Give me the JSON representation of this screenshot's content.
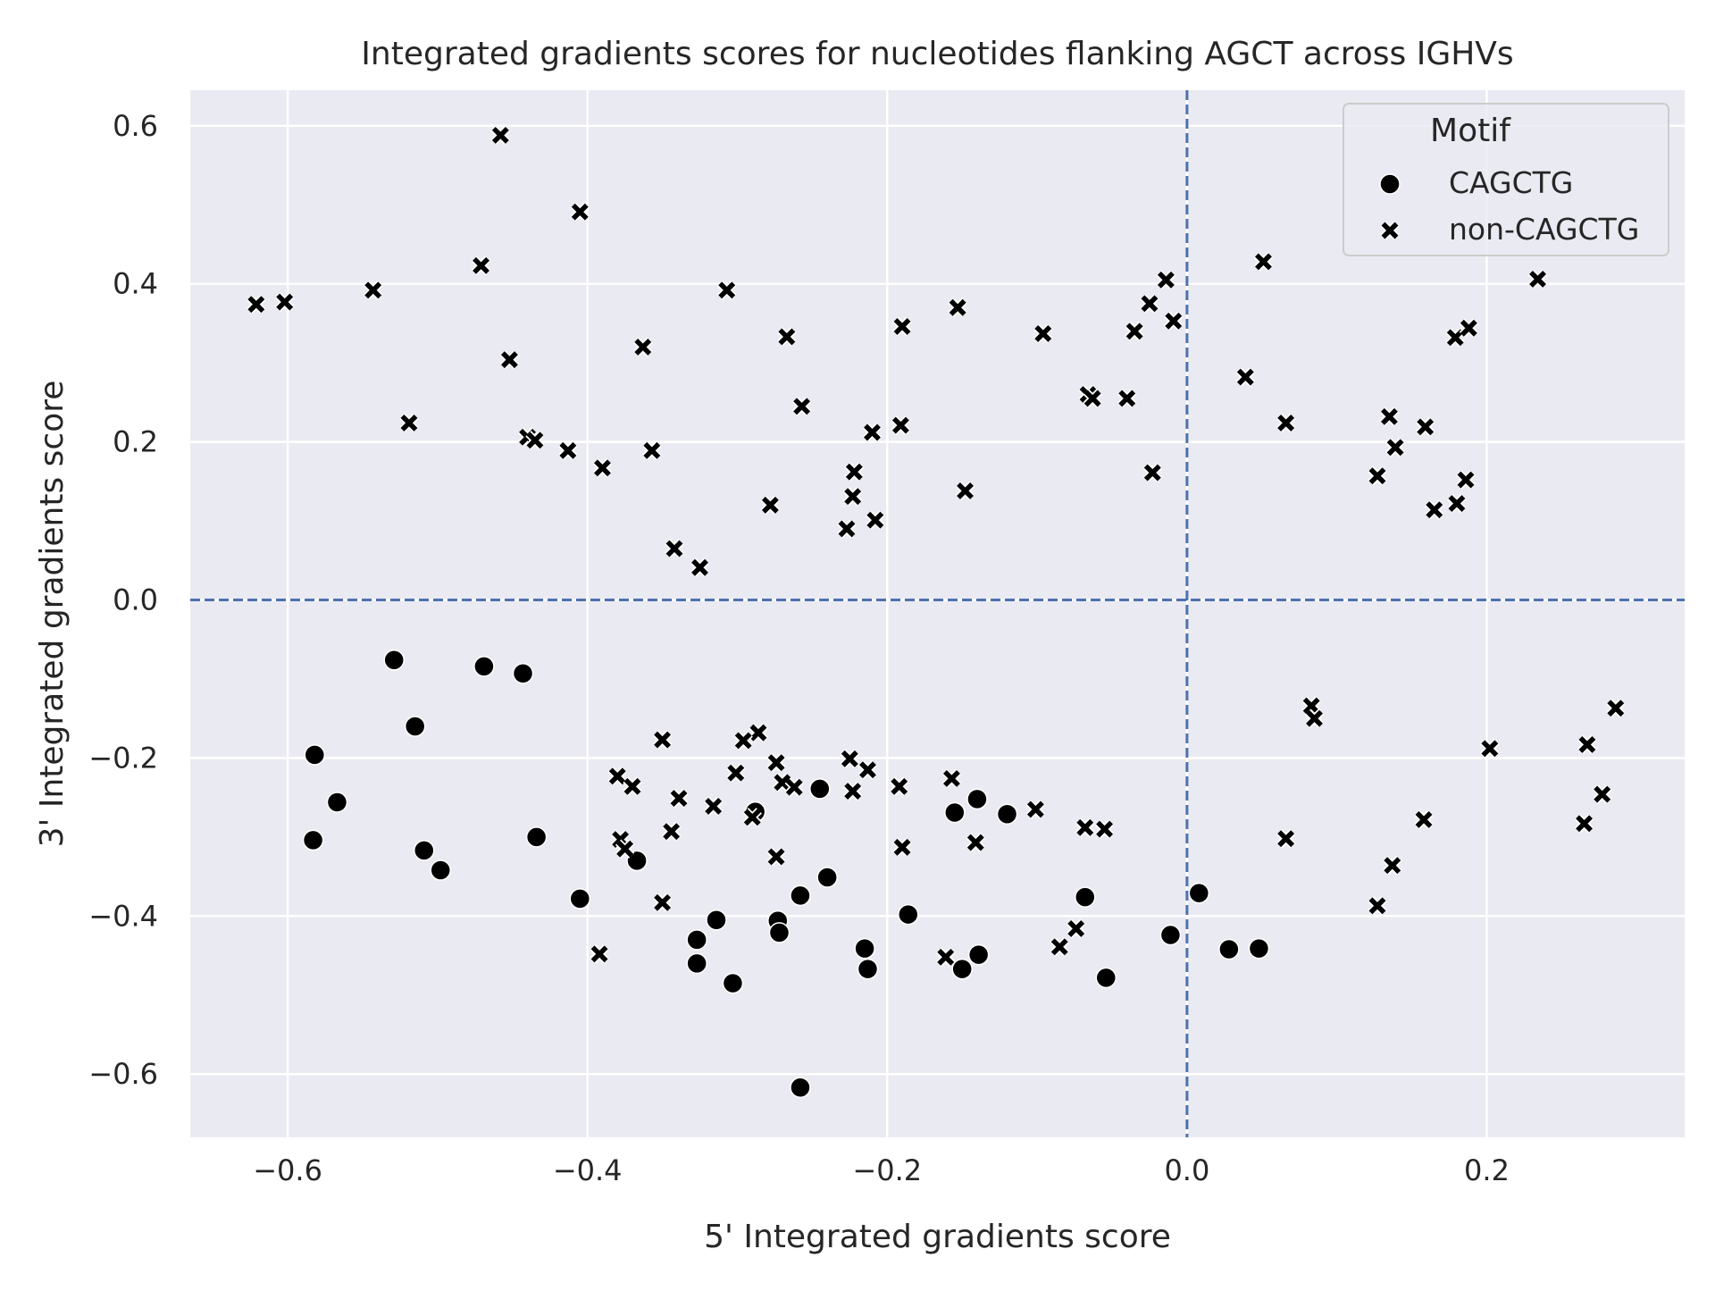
{
  "chart_data": {
    "type": "scatter",
    "title": "Integrated gradients scores for nucleotides flanking AGCT across IGHVs",
    "xlabel": "5' Integrated gradients score",
    "ylabel": "3' Integrated gradients score",
    "xlim": [
      -0.665,
      0.332
    ],
    "ylim": [
      -0.68,
      0.645
    ],
    "xticks": [
      -0.6,
      -0.4,
      -0.2,
      0.0,
      0.2
    ],
    "xtick_labels": [
      "−0.6",
      "−0.4",
      "−0.2",
      "0.0",
      "0.2"
    ],
    "yticks": [
      -0.6,
      -0.4,
      -0.2,
      0.0,
      0.2,
      0.4,
      0.6
    ],
    "ytick_labels": [
      "−0.6",
      "−0.4",
      "−0.2",
      "0.0",
      "0.2",
      "0.4",
      "0.6"
    ],
    "grid": true,
    "reference_lines": {
      "x": 0,
      "y": 0,
      "style": "dashed",
      "color": "#4c72b0"
    },
    "legend": {
      "title": "Motif",
      "position": "top-right",
      "entries": [
        {
          "label": "CAGCTG",
          "marker": "circle"
        },
        {
          "label": "non-CAGCTG",
          "marker": "x"
        }
      ]
    },
    "colors": {
      "background": "#eaeaf2",
      "grid": "#ffffff",
      "marker": "#000000",
      "reference": "#4c72b0"
    },
    "series": [
      {
        "name": "CAGCTG",
        "marker": "circle",
        "points": [
          [
            -0.529,
            -0.076
          ],
          [
            -0.469,
            -0.084
          ],
          [
            -0.443,
            -0.093
          ],
          [
            -0.515,
            -0.16
          ],
          [
            -0.582,
            -0.196
          ],
          [
            -0.567,
            -0.256
          ],
          [
            -0.583,
            -0.304
          ],
          [
            -0.509,
            -0.317
          ],
          [
            -0.498,
            -0.342
          ],
          [
            -0.434,
            -0.3
          ],
          [
            -0.367,
            -0.33
          ],
          [
            -0.405,
            -0.378
          ],
          [
            -0.288,
            -0.268
          ],
          [
            -0.245,
            -0.239
          ],
          [
            -0.24,
            -0.351
          ],
          [
            -0.258,
            -0.374
          ],
          [
            -0.273,
            -0.406
          ],
          [
            -0.272,
            -0.421
          ],
          [
            -0.314,
            -0.405
          ],
          [
            -0.327,
            -0.43
          ],
          [
            -0.327,
            -0.46
          ],
          [
            -0.303,
            -0.485
          ],
          [
            -0.215,
            -0.441
          ],
          [
            -0.213,
            -0.467
          ],
          [
            -0.186,
            -0.398
          ],
          [
            -0.155,
            -0.269
          ],
          [
            -0.14,
            -0.252
          ],
          [
            -0.12,
            -0.271
          ],
          [
            -0.15,
            -0.467
          ],
          [
            -0.139,
            -0.449
          ],
          [
            -0.258,
            -0.617
          ],
          [
            -0.068,
            -0.376
          ],
          [
            -0.054,
            -0.478
          ],
          [
            -0.011,
            -0.424
          ],
          [
            0.008,
            -0.371
          ],
          [
            0.028,
            -0.442
          ],
          [
            0.048,
            -0.441
          ]
        ]
      },
      {
        "name": "non-CAGCTG",
        "marker": "x",
        "points": [
          [
            -0.458,
            0.588
          ],
          [
            -0.405,
            0.491
          ],
          [
            -0.471,
            0.423
          ],
          [
            -0.543,
            0.392
          ],
          [
            -0.621,
            0.374
          ],
          [
            -0.602,
            0.377
          ],
          [
            -0.307,
            0.392
          ],
          [
            -0.452,
            0.304
          ],
          [
            -0.363,
            0.32
          ],
          [
            -0.267,
            0.333
          ],
          [
            -0.519,
            0.224
          ],
          [
            -0.44,
            0.206
          ],
          [
            -0.435,
            0.202
          ],
          [
            -0.413,
            0.189
          ],
          [
            -0.357,
            0.189
          ],
          [
            -0.39,
            0.167
          ],
          [
            -0.257,
            0.245
          ],
          [
            -0.19,
            0.346
          ],
          [
            -0.153,
            0.37
          ],
          [
            -0.096,
            0.337
          ],
          [
            -0.21,
            0.212
          ],
          [
            -0.191,
            0.221
          ],
          [
            -0.222,
            0.162
          ],
          [
            -0.223,
            0.131
          ],
          [
            -0.278,
            0.12
          ],
          [
            -0.208,
            0.101
          ],
          [
            -0.227,
            0.09
          ],
          [
            -0.342,
            0.065
          ],
          [
            -0.325,
            0.041
          ],
          [
            -0.148,
            0.138
          ],
          [
            -0.066,
            0.26
          ],
          [
            -0.063,
            0.255
          ],
          [
            -0.04,
            0.255
          ],
          [
            -0.035,
            0.34
          ],
          [
            -0.025,
            0.375
          ],
          [
            -0.014,
            0.405
          ],
          [
            -0.009,
            0.353
          ],
          [
            -0.023,
            0.161
          ],
          [
            0.039,
            0.282
          ],
          [
            0.051,
            0.428
          ],
          [
            0.066,
            0.224
          ],
          [
            0.135,
            0.232
          ],
          [
            0.139,
            0.193
          ],
          [
            0.127,
            0.157
          ],
          [
            0.159,
            0.219
          ],
          [
            0.179,
            0.332
          ],
          [
            0.188,
            0.344
          ],
          [
            0.165,
            0.114
          ],
          [
            0.18,
            0.122
          ],
          [
            0.186,
            0.152
          ],
          [
            0.234,
            0.406
          ],
          [
            -0.35,
            -0.177
          ],
          [
            -0.286,
            -0.168
          ],
          [
            -0.296,
            -0.178
          ],
          [
            -0.301,
            -0.219
          ],
          [
            -0.38,
            -0.223
          ],
          [
            -0.37,
            -0.236
          ],
          [
            -0.339,
            -0.251
          ],
          [
            -0.316,
            -0.261
          ],
          [
            -0.274,
            -0.206
          ],
          [
            -0.27,
            -0.231
          ],
          [
            -0.262,
            -0.237
          ],
          [
            -0.225,
            -0.201
          ],
          [
            -0.213,
            -0.215
          ],
          [
            -0.223,
            -0.242
          ],
          [
            -0.192,
            -0.236
          ],
          [
            -0.157,
            -0.226
          ],
          [
            -0.101,
            -0.265
          ],
          [
            -0.29,
            -0.275
          ],
          [
            -0.378,
            -0.303
          ],
          [
            -0.375,
            -0.315
          ],
          [
            -0.344,
            -0.293
          ],
          [
            -0.274,
            -0.325
          ],
          [
            -0.35,
            -0.383
          ],
          [
            -0.392,
            -0.448
          ],
          [
            -0.19,
            -0.313
          ],
          [
            -0.141,
            -0.307
          ],
          [
            -0.068,
            -0.288
          ],
          [
            -0.055,
            -0.29
          ],
          [
            -0.161,
            -0.452
          ],
          [
            -0.085,
            -0.439
          ],
          [
            -0.074,
            -0.416
          ],
          [
            0.066,
            -0.302
          ],
          [
            0.083,
            -0.134
          ],
          [
            0.085,
            -0.15
          ],
          [
            0.158,
            -0.278
          ],
          [
            0.137,
            -0.336
          ],
          [
            0.127,
            -0.387
          ],
          [
            0.202,
            -0.188
          ],
          [
            0.267,
            -0.183
          ],
          [
            0.286,
            -0.137
          ],
          [
            0.277,
            -0.246
          ],
          [
            0.265,
            -0.283
          ]
        ]
      }
    ]
  }
}
